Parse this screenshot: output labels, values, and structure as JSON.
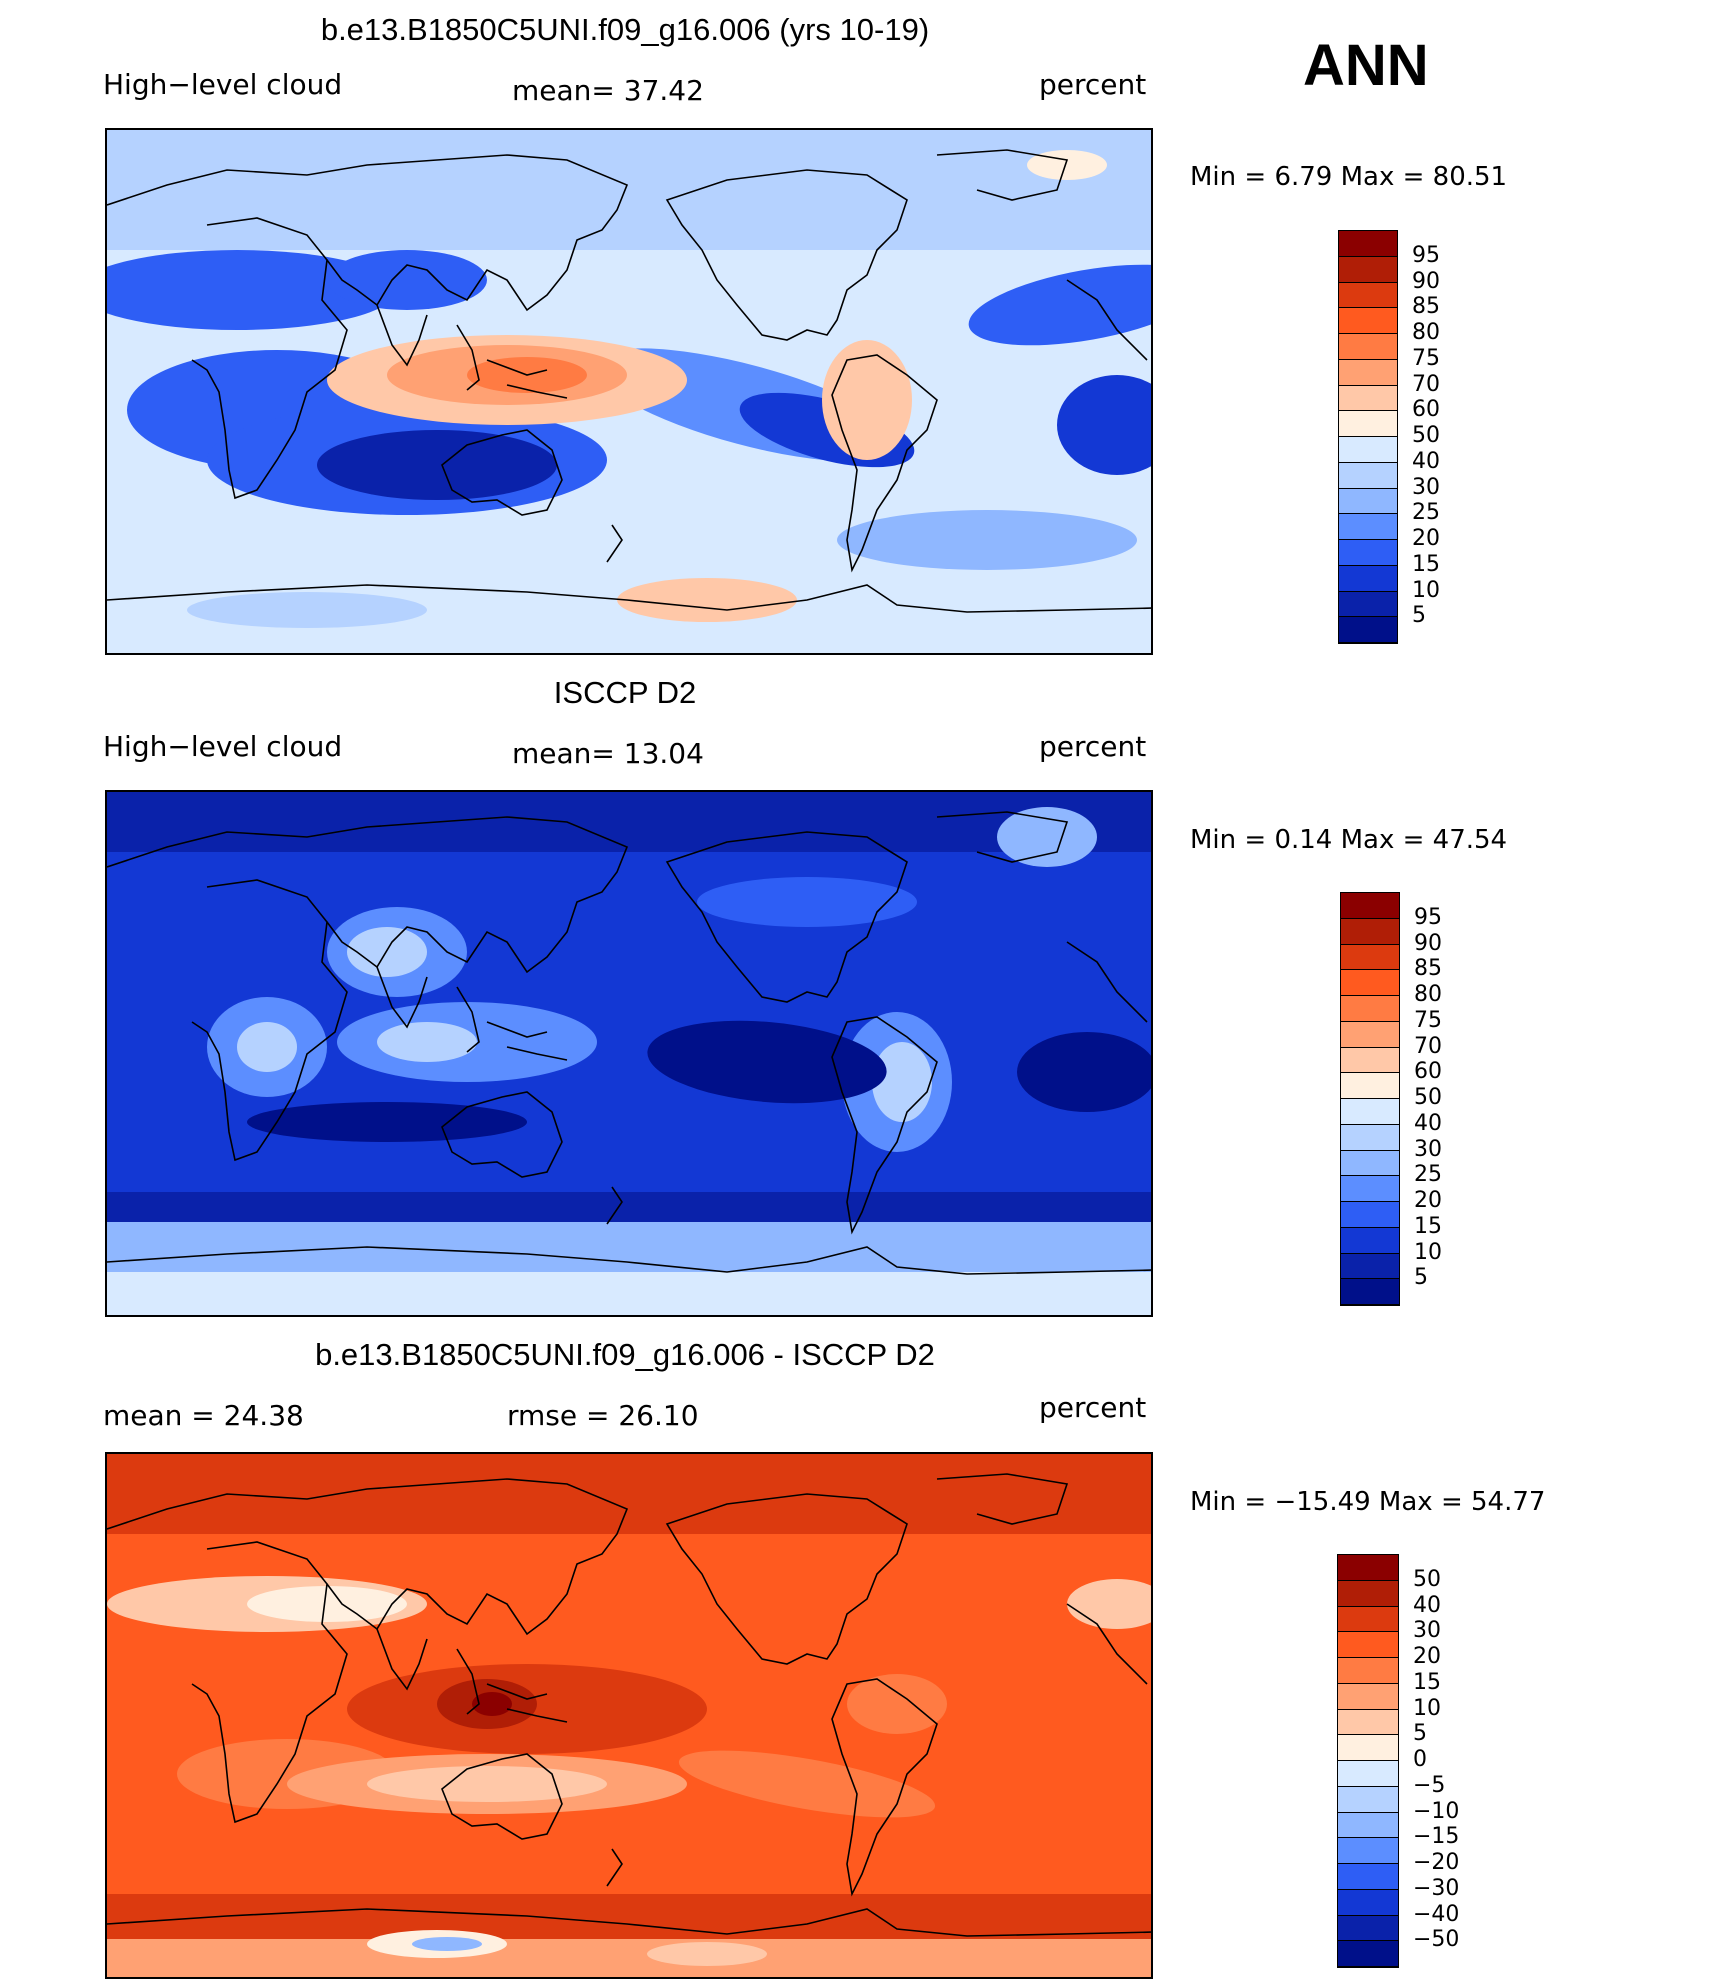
{
  "season": "ANN",
  "panels": [
    {
      "title": "b.e13.B1850C5UNI.f09_g16.006 (yrs 10-19)",
      "left_label": "High−level cloud",
      "mid_label": "mean=   37.42",
      "right_label": "percent",
      "minmax": "Min =    6.79 Max =   80.51",
      "colorbar": {
        "labels": [
          "95",
          "90",
          "85",
          "80",
          "75",
          "70",
          "60",
          "50",
          "40",
          "30",
          "25",
          "20",
          "15",
          "10",
          "5"
        ],
        "colors": [
          "#8b0000",
          "#b01e06",
          "#dc3a0f",
          "#ff5a1f",
          "#ff7b43",
          "#ffa173",
          "#ffc8a8",
          "#fff0e0",
          "#d8eaff",
          "#b5d2ff",
          "#8fb7ff",
          "#5c8eff",
          "#2e5ef5",
          "#1338d4",
          "#0a22aa",
          "#00108a"
        ]
      },
      "theme": "model"
    },
    {
      "title": "ISCCP D2",
      "left_label": "High−level cloud",
      "mid_label": "mean=   13.04",
      "right_label": "percent",
      "minmax": "Min =    0.14 Max =   47.54",
      "colorbar": {
        "labels": [
          "95",
          "90",
          "85",
          "80",
          "75",
          "70",
          "60",
          "50",
          "40",
          "30",
          "25",
          "20",
          "15",
          "10",
          "5"
        ],
        "colors": [
          "#8b0000",
          "#b01e06",
          "#dc3a0f",
          "#ff5a1f",
          "#ff7b43",
          "#ffa173",
          "#ffc8a8",
          "#fff0e0",
          "#d8eaff",
          "#b5d2ff",
          "#8fb7ff",
          "#5c8eff",
          "#2e5ef5",
          "#1338d4",
          "#0a22aa",
          "#00108a"
        ]
      },
      "theme": "obs"
    },
    {
      "title": "b.e13.B1850C5UNI.f09_g16.006 - ISCCP D2",
      "left_label": "mean =   24.38",
      "mid_label": "rmse =   26.10",
      "right_label": "percent",
      "minmax": "Min = −15.49 Max =   54.77",
      "colorbar": {
        "labels": [
          "50",
          "40",
          "30",
          "20",
          "15",
          "10",
          "5",
          "0",
          "−5",
          "−10",
          "−15",
          "−20",
          "−30",
          "−40",
          "−50"
        ],
        "colors": [
          "#8b0000",
          "#b01e06",
          "#dc3a0f",
          "#ff5a1f",
          "#ff7b43",
          "#ffa173",
          "#ffc8a8",
          "#fff0e0",
          "#d8eaff",
          "#b5d2ff",
          "#8fb7ff",
          "#5c8eff",
          "#2e5ef5",
          "#1338d4",
          "#0a22aa",
          "#00108a"
        ]
      },
      "theme": "diff"
    }
  ]
}
